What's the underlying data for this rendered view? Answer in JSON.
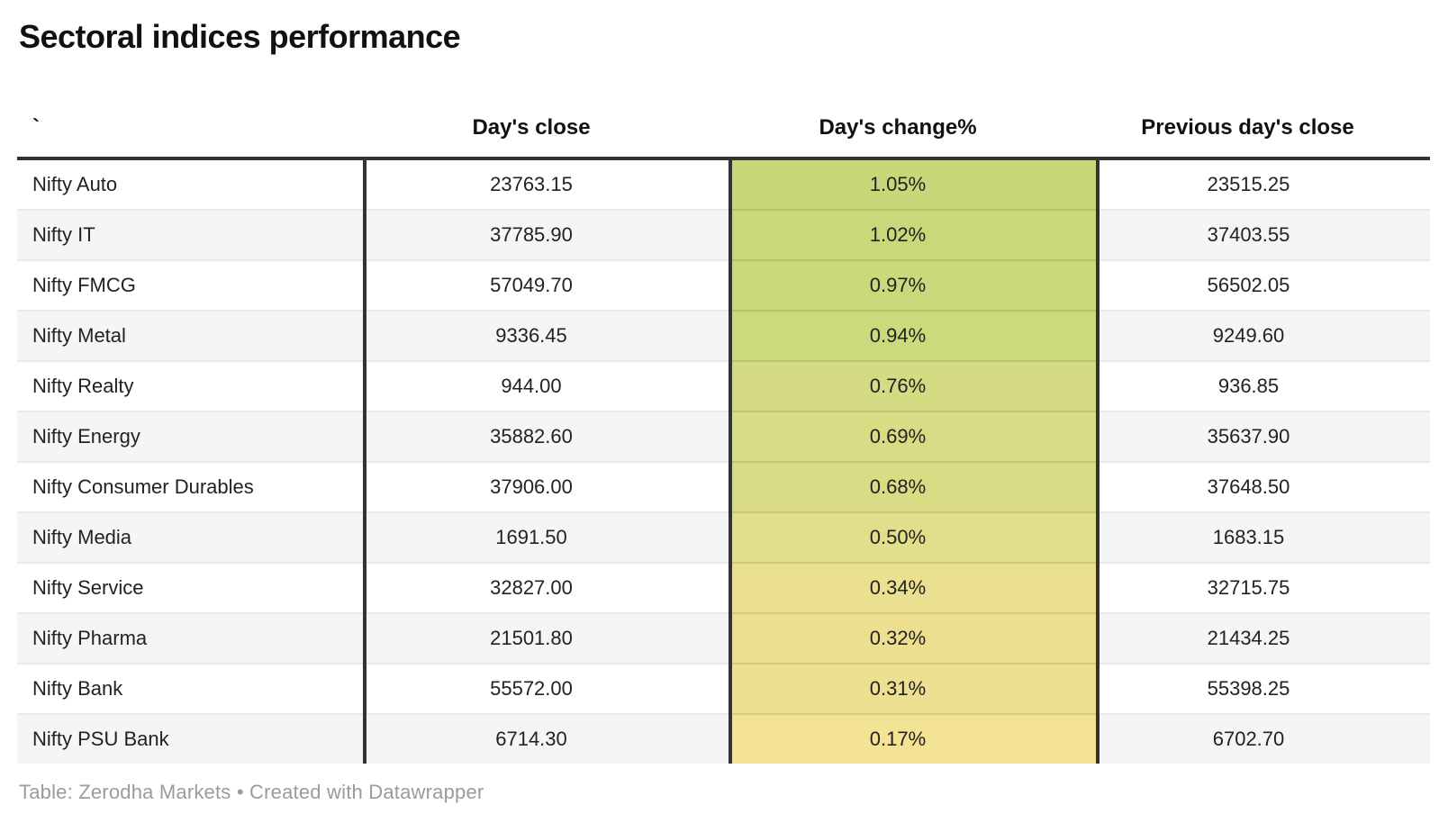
{
  "title": "Sectoral indices performance",
  "table": {
    "columns": [
      {
        "label": "`"
      },
      {
        "label": "Day's close"
      },
      {
        "label": "Day's change%"
      },
      {
        "label": "Previous day's close"
      }
    ],
    "rows": [
      {
        "name": "Nifty Auto",
        "close": "23763.15",
        "change": "1.05%",
        "prev": "23515.25",
        "change_color": "#c6d87a"
      },
      {
        "name": "Nifty IT",
        "close": "37785.90",
        "change": "1.02%",
        "prev": "37403.55",
        "change_color": "#c8d87b"
      },
      {
        "name": "Nifty FMCG",
        "close": "57049.70",
        "change": "0.97%",
        "prev": "56502.05",
        "change_color": "#cad97c"
      },
      {
        "name": "Nifty Metal",
        "close": "9336.45",
        "change": "0.94%",
        "prev": "9249.60",
        "change_color": "#ccd97d"
      },
      {
        "name": "Nifty Realty",
        "close": "944.00",
        "change": "0.76%",
        "prev": "936.85",
        "change_color": "#d5db83"
      },
      {
        "name": "Nifty Energy",
        "close": "35882.60",
        "change": "0.69%",
        "prev": "35637.90",
        "change_color": "#d9dc85"
      },
      {
        "name": "Nifty Consumer Durables",
        "close": "37906.00",
        "change": "0.68%",
        "prev": "37648.50",
        "change_color": "#dadc85"
      },
      {
        "name": "Nifty Media",
        "close": "1691.50",
        "change": "0.50%",
        "prev": "1683.15",
        "change_color": "#e3de8b"
      },
      {
        "name": "Nifty Service",
        "close": "32827.00",
        "change": "0.34%",
        "prev": "32715.75",
        "change_color": "#ebe090"
      },
      {
        "name": "Nifty Pharma",
        "close": "21501.80",
        "change": "0.32%",
        "prev": "21434.25",
        "change_color": "#ece090"
      },
      {
        "name": "Nifty Bank",
        "close": "55572.00",
        "change": "0.31%",
        "prev": "55398.25",
        "change_color": "#ede091"
      },
      {
        "name": "Nifty PSU Bank",
        "close": "6714.30",
        "change": "0.17%",
        "prev": "6702.70",
        "change_color": "#f4e295"
      }
    ]
  },
  "footer": "Table: Zerodha Markets • Created with Datawrapper",
  "colors": {
    "divider": "#333333",
    "row_alt_bg": "#f5f5f5",
    "row_separator": "#e9e9e9",
    "footer_text": "#9b9b9b",
    "heatmap_max": "#c6d87a",
    "heatmap_min": "#f4e295"
  },
  "chart_data": {
    "type": "table",
    "title": "Sectoral indices performance",
    "columns": [
      "`",
      "Day's close",
      "Day's change%",
      "Previous day's close"
    ],
    "rows": [
      [
        "Nifty Auto",
        23763.15,
        1.05,
        23515.25
      ],
      [
        "Nifty IT",
        37785.9,
        1.02,
        37403.55
      ],
      [
        "Nifty FMCG",
        57049.7,
        0.97,
        56502.05
      ],
      [
        "Nifty Metal",
        9336.45,
        0.94,
        9249.6
      ],
      [
        "Nifty Realty",
        944.0,
        0.76,
        936.85
      ],
      [
        "Nifty Energy",
        35882.6,
        0.69,
        35637.9
      ],
      [
        "Nifty Consumer Durables",
        37906.0,
        0.68,
        37648.5
      ],
      [
        "Nifty Media",
        1691.5,
        0.5,
        1683.15
      ],
      [
        "Nifty Service",
        32827.0,
        0.34,
        32715.75
      ],
      [
        "Nifty Pharma",
        21501.8,
        0.32,
        21434.25
      ],
      [
        "Nifty Bank",
        55572.0,
        0.31,
        55398.25
      ],
      [
        "Nifty PSU Bank",
        6714.3,
        0.17,
        6702.7
      ]
    ],
    "heatmap_column": "Day's change%",
    "heatmap_scale": {
      "min_value": 0.17,
      "max_value": 1.05,
      "min_color": "#f4e295",
      "max_color": "#c6d87a"
    },
    "source": "Table: Zerodha Markets • Created with Datawrapper"
  }
}
